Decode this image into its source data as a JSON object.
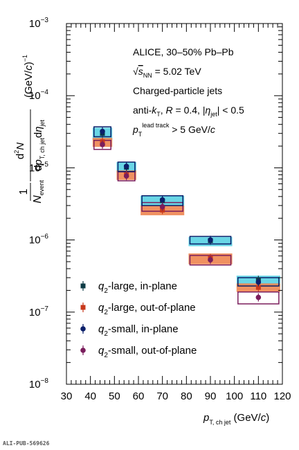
{
  "chart_data": {
    "type": "scatter",
    "xlim": [
      30,
      120
    ],
    "ylim_log10": [
      -8,
      -3
    ],
    "y_scale": "log",
    "x_ticks": [
      "30",
      "40",
      "50",
      "60",
      "70",
      "80",
      "90",
      "100",
      "110",
      "120"
    ],
    "y_ticks": [
      {
        "exp": -8,
        "label": "10",
        "sup": "−8"
      },
      {
        "exp": -7,
        "label": "10",
        "sup": "−7"
      },
      {
        "exp": -6,
        "label": "10",
        "sup": "−6"
      },
      {
        "exp": -5,
        "label": "10",
        "sup": "−5"
      },
      {
        "exp": -4,
        "label": "10",
        "sup": "−4"
      },
      {
        "exp": -3,
        "label": "10",
        "sup": "−3"
      }
    ],
    "xlabel": "p_T, ch jet (GeV/c)",
    "ylabel": "1/N_event d²N/dp_T, ch jet dη_jet (GeV/c)⁻¹",
    "annotations": [
      "ALICE, 30–50% Pb–Pb",
      "√s_NN = 5.02 TeV",
      "Charged-particle jets",
      "anti-k_T, R = 0.4, |η_jet| < 0.5",
      "p_T^lead track > 5 GeV/c"
    ],
    "x_bins": [
      [
        40,
        50
      ],
      [
        50,
        60
      ],
      [
        60,
        80
      ],
      [
        80,
        100
      ],
      [
        100,
        120
      ]
    ],
    "x_centers": [
      45,
      55,
      70,
      90,
      110
    ],
    "series": [
      {
        "name": "q2-large, in-plane",
        "marker": "square",
        "color": "#0d3b45",
        "box_fill": "#59d1e3",
        "box_style": "filled",
        "values": [
          3e-05,
          1.02e-05,
          3.5e-06,
          9.8e-07,
          2.8e-07
        ],
        "sys_low": [
          2.4e-05,
          8.6e-06,
          2.95e-06,
          8.2e-07,
          2.25e-07
        ],
        "sys_high": [
          3.6e-05,
          1.2e-05,
          4.1e-06,
          1.1e-06,
          3.2e-07
        ]
      },
      {
        "name": "q2-large, out-of-plane",
        "marker": "square",
        "color": "#c8381b",
        "box_fill": "#ee8550",
        "box_style": "filled",
        "values": [
          2.3e-05,
          8e-06,
          2.6e-06,
          5.6e-07,
          2.2e-07
        ],
        "sys_low": [
          1.95e-05,
          6.8e-06,
          2.2e-06,
          4.6e-07,
          1.9e-07
        ],
        "sys_high": [
          2.6e-05,
          9.2e-06,
          3e-06,
          6.5e-07,
          2.5e-07
        ]
      },
      {
        "name": "q2-small, in-plane",
        "marker": "circle",
        "color": "#0b1f6a",
        "box_fill": "#0b1f6a",
        "box_style": "open",
        "values": [
          3.2e-05,
          1.05e-05,
          3.6e-06,
          1e-06,
          2.6e-07
        ],
        "sys_low": [
          2.7e-05,
          8.9e-06,
          3e-06,
          8.8e-07,
          2.3e-07
        ],
        "sys_high": [
          3.7e-05,
          1.2e-05,
          4.1e-06,
          1.12e-06,
          3e-07
        ]
      },
      {
        "name": "q2-small, out-of-plane",
        "marker": "circle",
        "color": "#7a1d5c",
        "box_fill": "#7a1d5c",
        "box_style": "open",
        "values": [
          2.1e-05,
          7.7e-06,
          2.9e-06,
          5.3e-07,
          1.6e-07
        ],
        "sys_low": [
          1.8e-05,
          6.6e-06,
          2.5e-06,
          4.5e-07,
          1.3e-07
        ],
        "sys_high": [
          2.4e-05,
          8.8e-06,
          3.3e-06,
          6.1e-07,
          1.9e-07
        ]
      }
    ],
    "legend_position": "bottom-left",
    "grid": false
  },
  "footer": "ALI-PUB-569626"
}
